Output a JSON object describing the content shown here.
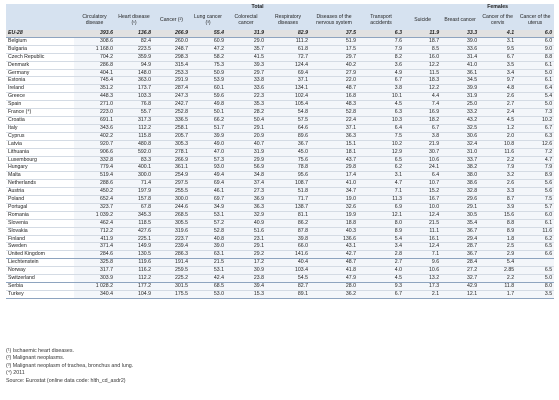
{
  "table": {
    "group_total": "Total",
    "group_females": "Females",
    "columns": [
      "",
      "Circulatory disease",
      "Heart disease (¹)",
      "Cancer (²)",
      "Lung cancer (³)",
      "Colorectal cancer",
      "Respiratory diseases",
      "Diseases of the nervous system",
      "Transport accidents",
      "Suicide",
      "Breast cancer",
      "Cancer of the cervix",
      "Cancer of the uterus"
    ],
    "eu_row": [
      "EU-28",
      "393.6",
      "136.8",
      "266.9",
      "55.4",
      "31.9",
      "82.9",
      "37.5",
      "6.3",
      "11.9",
      "33.3",
      "4.1",
      "6.0"
    ],
    "rows": [
      [
        "Belgium",
        "308.6",
        "82.4",
        "260.0",
        "60.9",
        "29.0",
        "111.2",
        "51.9",
        "7.6",
        "18.7",
        "39.0",
        "3.1",
        "6.0"
      ],
      [
        "Bulgaria",
        "1 168.0",
        "223.5",
        "248.7",
        "47.2",
        "35.7",
        "61.8",
        "17.5",
        "7.9",
        "8.5",
        "33.6",
        "9.5",
        "9.0"
      ],
      [
        "Czech Republic",
        "704.2",
        "359.9",
        "298.3",
        "58.2",
        "41.5",
        "72.7",
        "29.7",
        "8.2",
        "16.0",
        "31.4",
        "6.7",
        "8.8"
      ],
      [
        "Denmark",
        "286.8",
        "94.9",
        "315.4",
        "75.3",
        "39.3",
        "124.4",
        "40.2",
        "3.6",
        "12.2",
        "41.0",
        "3.5",
        "6.1"
      ],
      [
        "Germany",
        "404.1",
        "148.0",
        "253.3",
        "50.9",
        "29.7",
        "69.4",
        "27.9",
        "4.9",
        "11.5",
        "36.1",
        "3.4",
        "5.0"
      ],
      [
        "Estonia",
        "745.4",
        "363.0",
        "291.9",
        "53.9",
        "33.8",
        "37.1",
        "22.0",
        "6.7",
        "18.3",
        "34.5",
        "9.7",
        "6.1"
      ],
      [
        "Ireland",
        "351.2",
        "173.7",
        "287.4",
        "60.1",
        "33.6",
        "134.1",
        "48.7",
        "3.8",
        "12.2",
        "39.9",
        "4.8",
        "6.4"
      ],
      [
        "Greece",
        "448.3",
        "103.3",
        "247.3",
        "59.6",
        "22.3",
        "102.4",
        "16.8",
        "10.1",
        "4.4",
        "31.9",
        "2.6",
        "5.4"
      ],
      [
        "Spain",
        "271.0",
        "76.8",
        "242.7",
        "49.8",
        "35.3",
        "105.4",
        "48.3",
        "4.5",
        "7.4",
        "25.0",
        "2.7",
        "5.0"
      ],
      [
        "France (⁴)",
        "223.0",
        "55.7",
        "252.8",
        "50.1",
        "28.2",
        "54.8",
        "52.8",
        "6.3",
        "16.9",
        "33.2",
        "2.4",
        "7.3"
      ],
      [
        "Croatia",
        "691.1",
        "317.3",
        "336.5",
        "66.2",
        "50.4",
        "57.5",
        "22.4",
        "10.3",
        "18.2",
        "43.2",
        "4.5",
        "10.2"
      ],
      [
        "Italy",
        "343.6",
        "112.2",
        "258.1",
        "51.7",
        "29.1",
        "64.6",
        "37.1",
        "6.4",
        "6.7",
        "32.5",
        "1.2",
        "6.7"
      ],
      [
        "Cyprus",
        "402.2",
        "115.8",
        "205.7",
        "39.9",
        "20.9",
        "89.6",
        "36.3",
        "7.5",
        "3.8",
        "30.6",
        "2.0",
        "6.3"
      ],
      [
        "Latvia",
        "920.7",
        "480.8",
        "305.3",
        "49.0",
        "40.7",
        "36.7",
        "15.1",
        "10.2",
        "21.9",
        "32.4",
        "10.8",
        "12.6"
      ],
      [
        "Lithuania",
        "906.6",
        "592.0",
        "278.1",
        "47.0",
        "31.9",
        "45.0",
        "18.1",
        "12.9",
        "30.7",
        "31.0",
        "11.6",
        "7.2"
      ],
      [
        "Luxembourg",
        "332.8",
        "83.3",
        "266.9",
        "57.3",
        "29.9",
        "75.6",
        "43.7",
        "6.5",
        "10.6",
        "33.7",
        "2.2",
        "4.7"
      ],
      [
        "Hungary",
        "779.4",
        "400.1",
        "361.1",
        "93.0",
        "56.9",
        "78.8",
        "29.8",
        "6.2",
        "24.1",
        "38.2",
        "7.9",
        "7.9"
      ],
      [
        "Malta",
        "519.4",
        "300.0",
        "254.9",
        "49.4",
        "34.8",
        "95.6",
        "17.4",
        "3.1",
        "6.4",
        "38.0",
        "3.2",
        "8.9"
      ],
      [
        "Netherlands",
        "288.6",
        "71.4",
        "297.5",
        "69.4",
        "37.4",
        "108.7",
        "41.0",
        "4.7",
        "10.7",
        "38.6",
        "2.6",
        "5.6"
      ],
      [
        "Austria",
        "450.2",
        "197.9",
        "255.5",
        "46.1",
        "27.3",
        "51.8",
        "34.7",
        "7.1",
        "15.2",
        "32.8",
        "3.3",
        "5.6"
      ],
      [
        "Poland",
        "652.4",
        "157.8",
        "300.0",
        "69.7",
        "36.9",
        "71.7",
        "19.0",
        "11.3",
        "16.7",
        "29.6",
        "8.7",
        "7.5"
      ],
      [
        "Portugal",
        "323.7",
        "67.8",
        "244.6",
        "34.9",
        "36.3",
        "138.7",
        "32.6",
        "6.9",
        "10.0",
        "29.1",
        "3.9",
        "5.7"
      ],
      [
        "Romania",
        "1 039.2",
        "345.3",
        "268.5",
        "53.1",
        "32.9",
        "81.1",
        "19.9",
        "12.1",
        "12.4",
        "30.5",
        "15.6",
        "6.0"
      ],
      [
        "Slovenia",
        "462.4",
        "118.5",
        "305.5",
        "57.2",
        "40.9",
        "86.2",
        "18.8",
        "8.0",
        "21.5",
        "35.4",
        "8.8",
        "6.1"
      ],
      [
        "Slovakia",
        "712.2",
        "427.6",
        "319.6",
        "52.8",
        "51.6",
        "87.8",
        "40.3",
        "8.9",
        "11.1",
        "36.7",
        "8.9",
        "11.6"
      ],
      [
        "Finland",
        "411.9",
        "225.1",
        "223.7",
        "40.8",
        "23.1",
        "39.8",
        "136.6",
        "5.4",
        "16.1",
        "29.4",
        "1.8",
        "6.2"
      ],
      [
        "Sweden",
        "371.4",
        "149.9",
        "239.4",
        "39.0",
        "29.1",
        "66.0",
        "43.1",
        "3.4",
        "12.4",
        "28.7",
        "2.5",
        "6.5"
      ],
      [
        "United Kingdom",
        "284.6",
        "130.5",
        "286.3",
        "63.1",
        "29.2",
        "141.6",
        "42.7",
        "2.8",
        "7.1",
        "36.7",
        "2.9",
        "6.6"
      ]
    ],
    "efta_rows": [
      [
        "Liechtenstein",
        "325.8",
        "119.6",
        "191.4",
        "21.5",
        "17.2",
        "40.4",
        "48.7",
        "2.7",
        "9.6",
        "28.4",
        "5.4",
        ""
      ],
      [
        "Norway",
        "317.7",
        "116.2",
        "259.5",
        "53.1",
        "30.9",
        "103.4",
        "41.8",
        "4.0",
        "10.6",
        "27.2",
        "2.85",
        "6.5"
      ],
      [
        "Switzerland",
        "303.9",
        "112.2",
        "225.2",
        "42.4",
        "23.8",
        "54.5",
        "47.9",
        "4.5",
        "13.2",
        "32.7",
        "2.2",
        "5.0"
      ]
    ],
    "cand_rows": [
      [
        "Serbia",
        "1 028.2",
        "177.2",
        "301.5",
        "68.5",
        "39.4",
        "82.7",
        "28.0",
        "9.3",
        "17.3",
        "42.9",
        "11.8",
        "8.0"
      ],
      [
        "Turkey",
        "340.4",
        "104.9",
        "175.5",
        "53.0",
        "15.3",
        "89.1",
        "36.2",
        "6.7",
        "2.1",
        "12.1",
        "1.7",
        "3.5"
      ]
    ]
  },
  "notes": [
    "(¹) Ischaemic heart diseases.",
    "(²) Malignant neoplasms.",
    "(³) Malignant neoplasm of trachea, bronchus and lung.",
    "(⁴) 2011",
    "Source: Eurostat (online data code: hlth_cd_asdr2)"
  ]
}
